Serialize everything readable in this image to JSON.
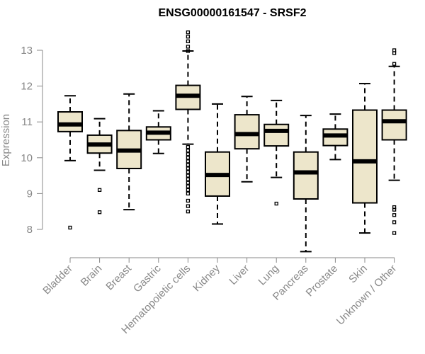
{
  "chart_data": {
    "type": "boxplot",
    "title": "ENSG00000161547 - SRSF2",
    "ylabel": "Expression",
    "xlabel": "",
    "ylim": [
      7.2,
      13.7
    ],
    "yticks": [
      8,
      9,
      10,
      11,
      12,
      13
    ],
    "grid": false,
    "box_color": "#ede6cb",
    "categories": [
      "Bladder",
      "Brain",
      "Breast",
      "Gastric",
      "Hematopoietic cells",
      "Kidney",
      "Liver",
      "Lung",
      "Pancreas",
      "Prostate",
      "Skin",
      "Unknown / Other"
    ],
    "boxes": [
      {
        "category": "Bladder",
        "whisker_low": 9.92,
        "q1": 10.73,
        "median": 10.93,
        "q3": 11.28,
        "whisker_high": 11.73,
        "outliers": [
          8.05
        ]
      },
      {
        "category": "Brain",
        "whisker_low": 9.65,
        "q1": 10.13,
        "median": 10.37,
        "q3": 10.63,
        "whisker_high": 11.09,
        "outliers": [
          9.1,
          8.48
        ]
      },
      {
        "category": "Breast",
        "whisker_low": 8.55,
        "q1": 9.7,
        "median": 10.2,
        "q3": 10.76,
        "whisker_high": 11.78,
        "outliers": []
      },
      {
        "category": "Gastric",
        "whisker_low": 10.12,
        "q1": 10.5,
        "median": 10.7,
        "q3": 10.86,
        "whisker_high": 11.31,
        "outliers": []
      },
      {
        "category": "Hematopoietic cells",
        "whisker_low": 10.38,
        "q1": 11.35,
        "median": 11.73,
        "q3": 12.02,
        "whisker_high": 12.98,
        "outliers": [
          13.5,
          13.38,
          13.25,
          13.1,
          12.98,
          10.3,
          10.2,
          10.1,
          10.0,
          9.9,
          9.8,
          9.7,
          9.6,
          9.5,
          9.4,
          9.3,
          9.2,
          9.1,
          9.0,
          8.8,
          8.65,
          8.5
        ]
      },
      {
        "category": "Kidney",
        "whisker_low": 8.15,
        "q1": 8.93,
        "median": 9.52,
        "q3": 10.16,
        "whisker_high": 11.5,
        "outliers": []
      },
      {
        "category": "Liver",
        "whisker_low": 9.33,
        "q1": 10.25,
        "median": 10.66,
        "q3": 11.2,
        "whisker_high": 11.71,
        "outliers": []
      },
      {
        "category": "Lung",
        "whisker_low": 9.45,
        "q1": 10.33,
        "median": 10.75,
        "q3": 10.93,
        "whisker_high": 11.6,
        "outliers": [
          8.72
        ]
      },
      {
        "category": "Pancreas",
        "whisker_low": 7.38,
        "q1": 8.85,
        "median": 9.59,
        "q3": 10.16,
        "whisker_high": 11.18,
        "outliers": []
      },
      {
        "category": "Prostate",
        "whisker_low": 9.95,
        "q1": 10.34,
        "median": 10.62,
        "q3": 10.8,
        "whisker_high": 11.22,
        "outliers": []
      },
      {
        "category": "Skin",
        "whisker_low": 7.9,
        "q1": 8.74,
        "median": 9.9,
        "q3": 11.33,
        "whisker_high": 12.07,
        "outliers": []
      },
      {
        "category": "Unknown / Other",
        "whisker_low": 9.37,
        "q1": 10.5,
        "median": 11.02,
        "q3": 11.33,
        "whisker_high": 12.55,
        "outliers": [
          13.0,
          12.92,
          12.62,
          8.62,
          8.55,
          8.4,
          8.2,
          7.9
        ]
      }
    ]
  }
}
